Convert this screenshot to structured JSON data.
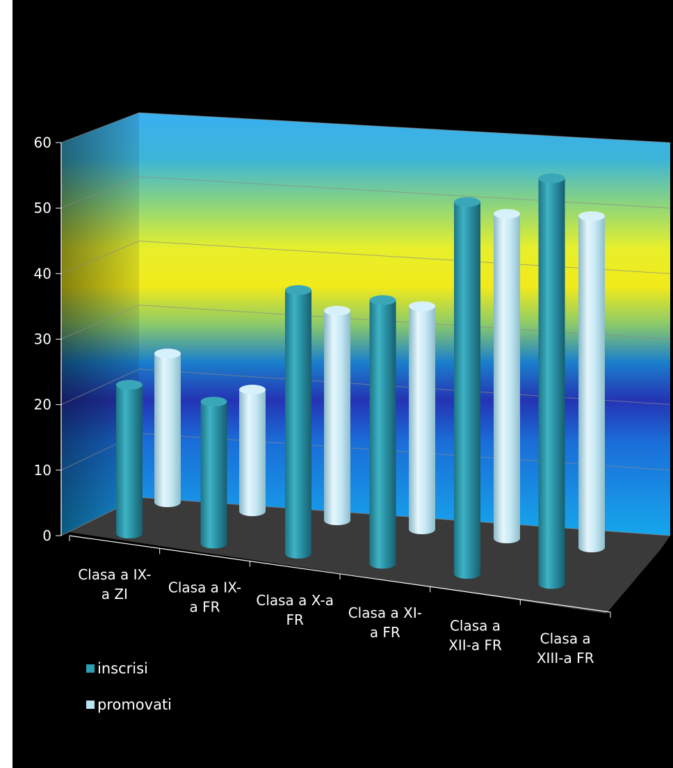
{
  "chart_data": {
    "type": "bar",
    "style": "3d-cylinder",
    "categories": [
      [
        "Clasa a IX-",
        "a ZI"
      ],
      [
        "Clasa a IX-",
        "a FR"
      ],
      [
        "Clasa a X-a",
        "FR"
      ],
      [
        "Clasa a XI-",
        "a FR"
      ],
      [
        "Clasa a",
        "XII-a FR"
      ],
      [
        "Clasa a",
        "XIII-a FR"
      ]
    ],
    "series": [
      {
        "name": "inscrisi",
        "values": [
          22,
          21,
          39,
          39,
          55,
          60
        ],
        "color": "#2e9fb0"
      },
      {
        "name": "promovati",
        "values": [
          22,
          18,
          31,
          33,
          48,
          49
        ],
        "color": "#b8e4f2"
      }
    ],
    "ylim": [
      0,
      60
    ],
    "yticks": [
      "0",
      "10",
      "20",
      "30",
      "40",
      "50",
      "60"
    ],
    "grid": true,
    "legend_position": "bottom-left",
    "background": "#000000"
  }
}
